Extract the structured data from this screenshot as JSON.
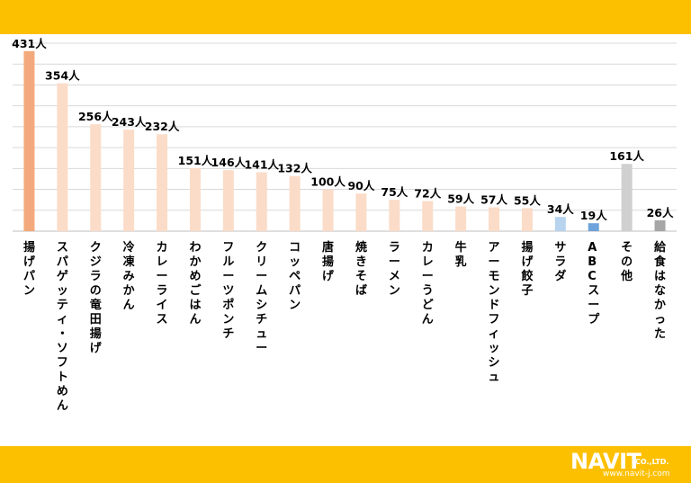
{
  "colors": {
    "band": "#FDC000",
    "grid": "#D9D9D9",
    "bar_top": "#F3A97B",
    "bar_normal": "#FBDCC8",
    "bar_blue": "#B7D3EE",
    "bar_blue_dark": "#6FA3DB",
    "bar_gray": "#D0D0D0",
    "bar_gray_dark": "#A6A6A6",
    "text": "#000000"
  },
  "logo": {
    "name": "NAVIT",
    "suffix": "CO.,LTD.",
    "url": "www.navit-j.com"
  },
  "chart_data": {
    "type": "bar",
    "unit_suffix": "人",
    "grid": true,
    "ylim": [
      0,
      450
    ],
    "categories": [
      "揚げパン",
      "スパゲッティ・ソフトめん",
      "クジラの竜田揚げ",
      "冷凍みかん",
      "カレーライス",
      "わかめごはん",
      "フルーツポンチ",
      "クリームシチュー",
      "コッペパン",
      "唐揚げ",
      "焼きそば",
      "ラーメン",
      "カレーうどん",
      "牛乳",
      "アーモンドフィッシュ",
      "揚げ餃子",
      "サラダ",
      "ABCスープ",
      "その他",
      "給食はなかった"
    ],
    "values": [
      431,
      354,
      256,
      243,
      232,
      151,
      146,
      141,
      132,
      100,
      90,
      75,
      72,
      59,
      57,
      55,
      34,
      19,
      161,
      26
    ],
    "value_labels": [
      "431人",
      "354人",
      "256人",
      "243人",
      "232人",
      "151人",
      "146人",
      "141人",
      "132人",
      "100人",
      "90人",
      "75人",
      "72人",
      "59人",
      "57人",
      "55人",
      "34人",
      "19人",
      "161人",
      "26人"
    ],
    "bar_color_keys": [
      "bar_top",
      "bar_normal",
      "bar_normal",
      "bar_normal",
      "bar_normal",
      "bar_normal",
      "bar_normal",
      "bar_normal",
      "bar_normal",
      "bar_normal",
      "bar_normal",
      "bar_normal",
      "bar_normal",
      "bar_normal",
      "bar_normal",
      "bar_normal",
      "bar_blue",
      "bar_blue_dark",
      "bar_gray",
      "bar_gray_dark"
    ]
  }
}
